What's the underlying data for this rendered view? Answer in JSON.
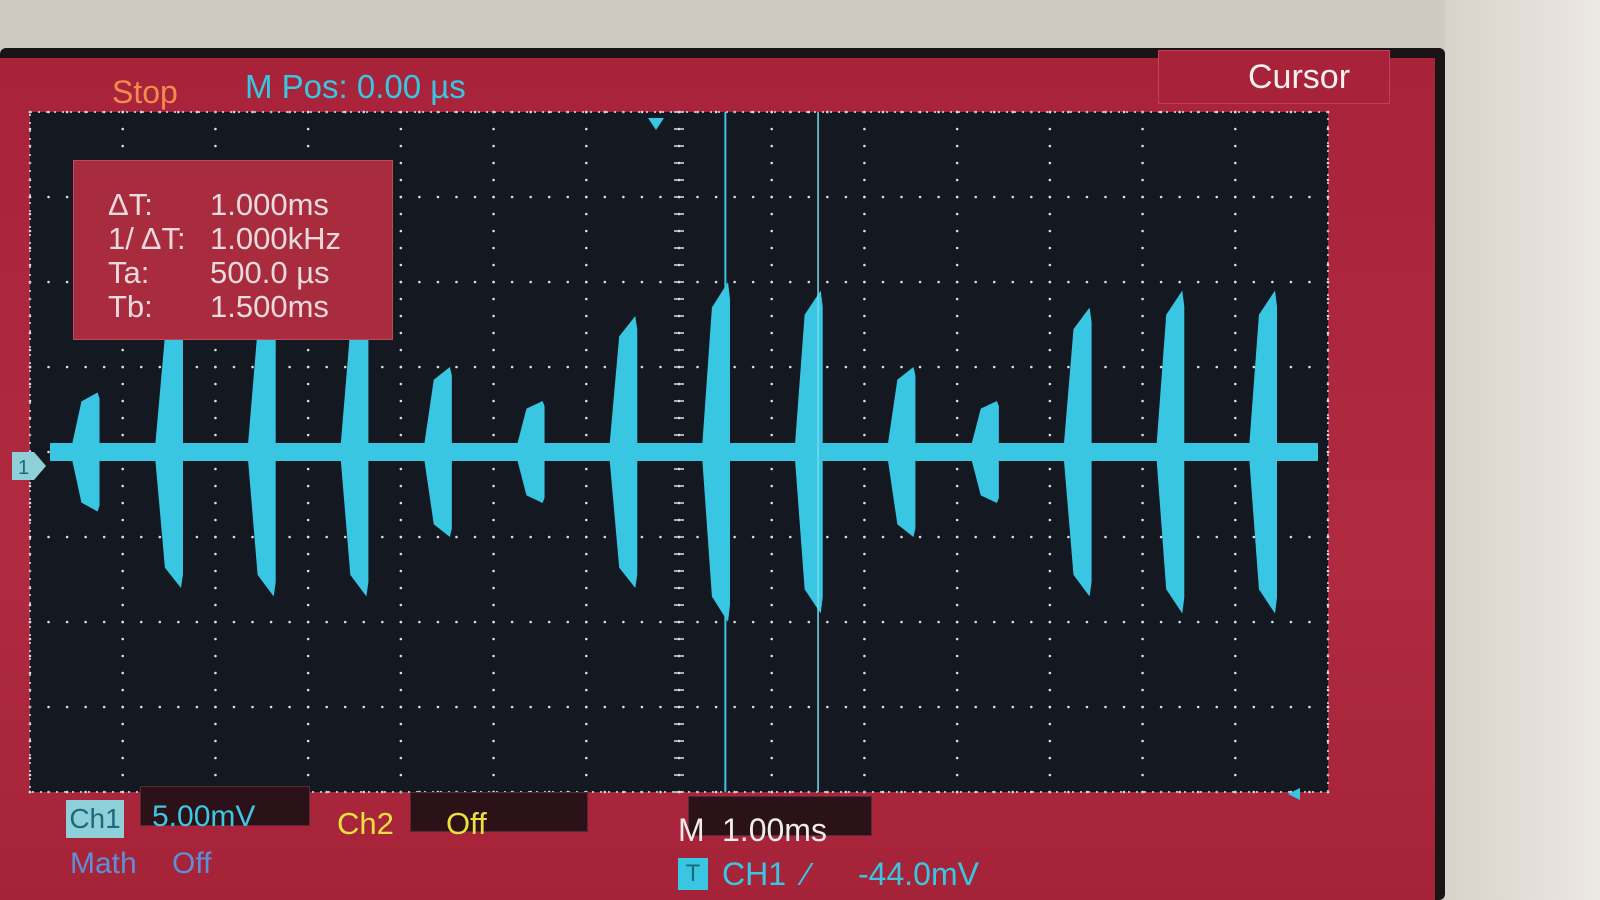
{
  "header": {
    "run_state": "Stop",
    "memory_position": "M Pos: 0.00 µs",
    "menu_title": "Cursor"
  },
  "cursor_measurements": [
    {
      "label": "ΔT:",
      "value": "1.000ms"
    },
    {
      "label": "1/ ΔT:",
      "value": "1.000kHz"
    },
    {
      "label": "Ta:",
      "value": "500.0 µs"
    },
    {
      "label": "Tb:",
      "value": "1.500ms"
    }
  ],
  "channels": {
    "ch1": {
      "label": "Ch1",
      "scale": "5.00mV",
      "color": "#39c6e3",
      "marker": "1"
    },
    "ch2": {
      "label": "Ch2",
      "state": "Off",
      "color": "#ece041"
    },
    "math": {
      "label": "Math",
      "state": "Off"
    }
  },
  "timebase": {
    "label": "M",
    "value": "1.00ms"
  },
  "trigger": {
    "icon": "T",
    "source": "CH1",
    "edge": "∕",
    "level": "-44.0mV"
  },
  "chart_data": {
    "type": "line",
    "xlabel": "",
    "ylabel": "",
    "x_divisions": 14,
    "y_divisions": 8,
    "x_range_ms": [
      -7,
      7
    ],
    "y_range_div": [
      -4,
      4
    ],
    "cursors_ms": {
      "a": 0.5,
      "b": 1.5
    },
    "bursts": [
      {
        "t_div": -6.4,
        "amp_div": 0.7,
        "dur_div": 0.3
      },
      {
        "t_div": -5.5,
        "amp_div": 1.6,
        "dur_div": 0.3
      },
      {
        "t_div": -4.5,
        "amp_div": 1.7,
        "dur_div": 0.3
      },
      {
        "t_div": -3.5,
        "amp_div": 1.7,
        "dur_div": 0.3
      },
      {
        "t_div": -2.6,
        "amp_div": 1.0,
        "dur_div": 0.3
      },
      {
        "t_div": -1.6,
        "amp_div": 0.6,
        "dur_div": 0.3
      },
      {
        "t_div": -0.6,
        "amp_div": 1.6,
        "dur_div": 0.3
      },
      {
        "t_div": 0.4,
        "amp_div": 2.0,
        "dur_div": 0.3
      },
      {
        "t_div": 1.4,
        "amp_div": 1.9,
        "dur_div": 0.3
      },
      {
        "t_div": 2.4,
        "amp_div": 1.0,
        "dur_div": 0.3
      },
      {
        "t_div": 3.3,
        "amp_div": 0.6,
        "dur_div": 0.3
      },
      {
        "t_div": 4.3,
        "amp_div": 1.7,
        "dur_div": 0.3
      },
      {
        "t_div": 5.3,
        "amp_div": 1.9,
        "dur_div": 0.3
      },
      {
        "t_div": 6.3,
        "amp_div": 1.9,
        "dur_div": 0.3
      }
    ]
  }
}
